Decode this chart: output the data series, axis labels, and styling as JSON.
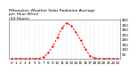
{
  "title": "Milwaukee Weather Solar Radiation Average\nper Hour W/m2\n(24 Hours)",
  "hours": [
    0,
    1,
    2,
    3,
    4,
    5,
    6,
    7,
    8,
    9,
    10,
    11,
    12,
    13,
    14,
    15,
    16,
    17,
    18,
    19,
    20,
    21,
    22,
    23
  ],
  "solar": [
    0,
    0,
    0,
    0,
    0,
    0,
    2,
    15,
    60,
    130,
    220,
    320,
    370,
    340,
    270,
    190,
    100,
    30,
    5,
    0,
    0,
    0,
    0,
    0
  ],
  "line_color": "#ff0000",
  "bg_color": "#ffffff",
  "ylim": [
    0,
    400
  ],
  "xlim": [
    -0.5,
    23.5
  ],
  "grid_color": "#bbbbbb",
  "tick_label_size": 3.0,
  "title_fontsize": 3.2,
  "yticks": [
    50,
    100,
    150,
    200,
    250,
    300,
    350,
    400
  ]
}
